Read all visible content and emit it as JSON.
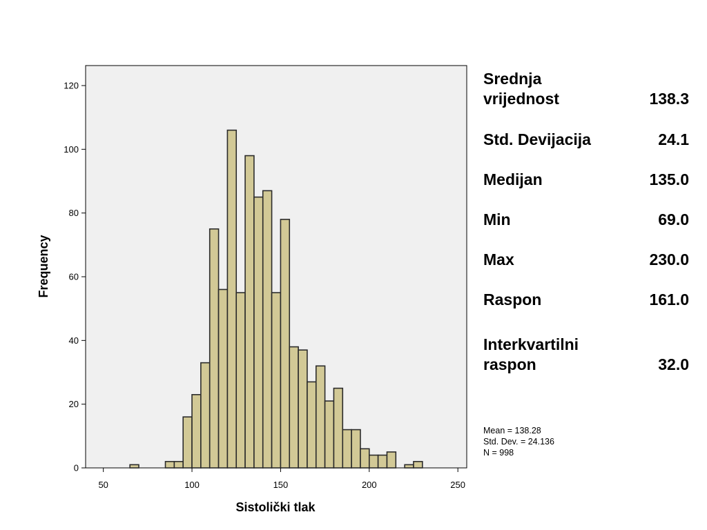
{
  "chart_data": {
    "type": "bar",
    "title": "",
    "xlabel": "Sistolički tlak",
    "ylabel": "Frequency",
    "xlim": [
      40,
      255
    ],
    "ylim": [
      0,
      120
    ],
    "x_ticks": [
      50,
      100,
      150,
      200,
      250
    ],
    "y_ticks": [
      0,
      20,
      40,
      60,
      80,
      100,
      120
    ],
    "bin_width": 5,
    "bin_starts": [
      65,
      70,
      75,
      80,
      85,
      90,
      95,
      100,
      105,
      110,
      115,
      120,
      125,
      130,
      135,
      140,
      145,
      150,
      155,
      160,
      165,
      170,
      175,
      180,
      185,
      190,
      195,
      200,
      205,
      210,
      215,
      220,
      225
    ],
    "values": [
      1,
      0,
      0,
      0,
      2,
      2,
      16,
      23,
      33,
      75,
      56,
      106,
      55,
      98,
      85,
      87,
      55,
      78,
      38,
      37,
      27,
      32,
      21,
      25,
      12,
      12,
      6,
      4,
      4,
      5,
      0,
      1,
      2
    ],
    "grid": false,
    "colors": {
      "bar_fill": "#d2c996",
      "bar_stroke": "#2b2b2b",
      "plot_bg": "#f0f0f0"
    },
    "summary": {
      "mean": "Mean = 138.28",
      "std": "Std. Dev. = 24.136",
      "n": "N = 998"
    }
  },
  "stats": [
    {
      "label_line1": "Srednja",
      "label_line2": "vrijednost",
      "value": "138.3"
    },
    {
      "label_line1": "Std. Devijacija",
      "label_line2": "",
      "value": "24.1"
    },
    {
      "label_line1": "Medijan",
      "label_line2": "",
      "value": "135.0"
    },
    {
      "label_line1": "Min",
      "label_line2": "",
      "value": "69.0"
    },
    {
      "label_line1": "Max",
      "label_line2": "",
      "value": "230.0"
    },
    {
      "label_line1": "Raspon",
      "label_line2": "",
      "value": "161.0"
    },
    {
      "label_line1": "Interkvartilni",
      "label_line2": "raspon",
      "value": "32.0"
    }
  ]
}
